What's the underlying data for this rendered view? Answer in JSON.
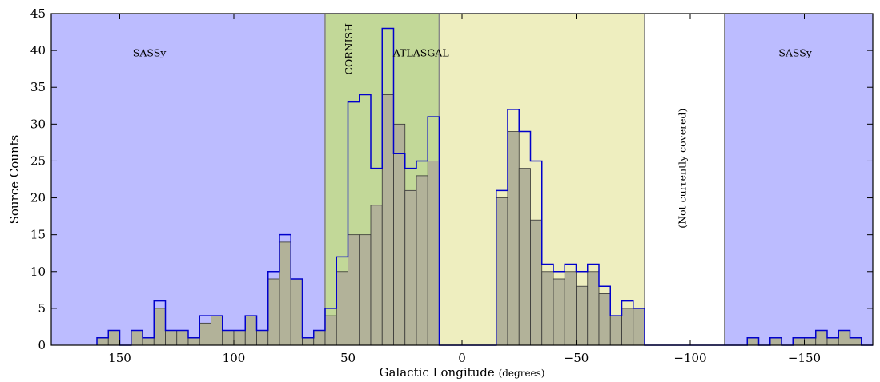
{
  "chart_data": {
    "type": "bar",
    "title": "",
    "xlabel": "Galactic Longitude",
    "xlabel_unit": "(degrees)",
    "ylabel": "Source Counts",
    "xlim": [
      180,
      -180
    ],
    "ylim": [
      0,
      45
    ],
    "xticks": [
      150,
      100,
      50,
      0,
      -50,
      -100,
      -150
    ],
    "xtick_labels": [
      "150",
      "100",
      "50",
      "0",
      "−50",
      "−100",
      "−150"
    ],
    "yticks": [
      0,
      5,
      10,
      15,
      20,
      25,
      30,
      35,
      40,
      45
    ],
    "bin_width": 5,
    "bin_starts": [
      160,
      155,
      150,
      145,
      140,
      135,
      130,
      125,
      120,
      115,
      110,
      105,
      100,
      95,
      90,
      85,
      80,
      75,
      70,
      65,
      60,
      55,
      50,
      45,
      40,
      35,
      30,
      25,
      20,
      15,
      10,
      5,
      0,
      -5,
      -10,
      -15,
      -20,
      -25,
      -30,
      -35,
      -40,
      -45,
      -50,
      -55,
      -60,
      -65,
      -70,
      -75,
      -80,
      -85,
      -90,
      -95,
      -100,
      -105,
      -110,
      -115,
      -120,
      -125,
      -130,
      -135,
      -140,
      -145,
      -150,
      -155,
      -160,
      -165,
      -170,
      -175
    ],
    "series": [
      {
        "name": "",
        "style": "filled",
        "values": [
          1,
          2,
          0,
          2,
          1,
          5,
          2,
          2,
          1,
          3,
          4,
          2,
          2,
          4,
          2,
          9,
          14,
          9,
          1,
          2,
          4,
          10,
          15,
          15,
          19,
          34,
          30,
          21,
          23,
          25,
          0,
          0,
          0,
          0,
          0,
          20,
          29,
          24,
          17,
          10,
          9,
          10,
          8,
          10,
          7,
          4,
          5,
          5,
          0,
          0,
          0,
          0,
          0,
          0,
          0,
          0,
          0,
          1,
          0,
          1,
          0,
          1,
          1,
          2,
          1,
          2,
          1,
          0
        ]
      },
      {
        "name": "",
        "style": "step",
        "values": [
          1,
          2,
          0,
          2,
          1,
          6,
          2,
          2,
          1,
          4,
          4,
          2,
          2,
          4,
          2,
          10,
          15,
          9,
          1,
          2,
          5,
          12,
          33,
          34,
          24,
          43,
          26,
          24,
          25,
          31,
          0,
          0,
          0,
          0,
          0,
          21,
          32,
          29,
          25,
          11,
          10,
          11,
          10,
          11,
          8,
          4,
          6,
          5,
          0,
          0,
          0,
          0,
          0,
          0,
          0,
          0,
          0,
          1,
          0,
          1,
          0,
          1,
          1,
          2,
          1,
          2,
          1,
          0
        ]
      }
    ],
    "regions": [
      {
        "from": 180,
        "to": 60,
        "label": "SASSy",
        "color": "#bcbcff",
        "label_x": 137,
        "label_y": 39.2,
        "vertical": false
      },
      {
        "from": 60,
        "to": 10,
        "label": "CORNISH",
        "color": "#c2d898",
        "label_x": 48,
        "label_y": 40.2,
        "vertical": true
      },
      {
        "from": 10,
        "to": -80,
        "label": "ATLASGAL",
        "color": "#eeeebf",
        "label_x": 18,
        "label_y": 39.2,
        "vertical": false
      },
      {
        "from": -80,
        "to": -115,
        "label": "(Not currently covered)",
        "color": "#ffffff",
        "label_x": -98,
        "label_y": 24,
        "vertical": true
      },
      {
        "from": -115,
        "to": -180,
        "label": "SASSy",
        "color": "#bcbcff",
        "label_x": -146,
        "label_y": 39.2,
        "vertical": false
      }
    ],
    "colors": {
      "filled_bar": "#b2b299",
      "filled_edge": "#333333",
      "step_line": "#0000cc",
      "region_edge": "#888888"
    },
    "grid": false
  }
}
